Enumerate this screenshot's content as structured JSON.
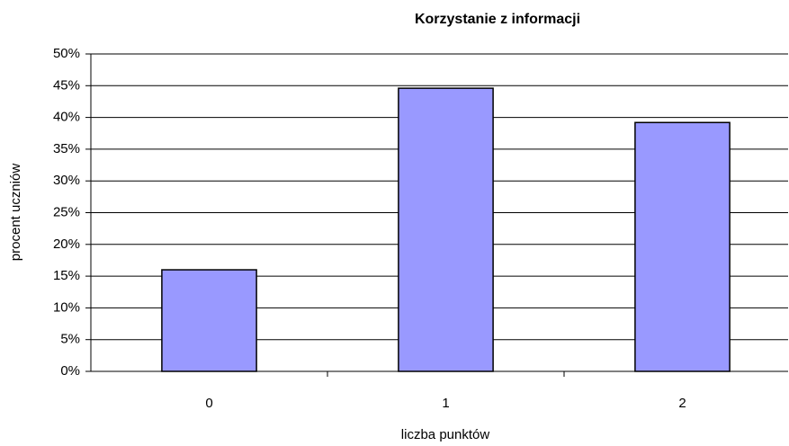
{
  "chart_data": {
    "type": "bar",
    "title": "Korzystanie z informacji",
    "x_label": "liczba punktów",
    "y_label": "procent uczniów",
    "categories": [
      "0",
      "1",
      "2"
    ],
    "values": [
      16,
      44.6,
      39.2
    ],
    "color": "#9999ff",
    "ylim": [
      0,
      50
    ],
    "yticks": [
      {
        "value": 0,
        "label": "0%"
      },
      {
        "value": 5,
        "label": "5%"
      },
      {
        "value": 10,
        "label": "10%"
      },
      {
        "value": 15,
        "label": "15%"
      },
      {
        "value": 20,
        "label": "20%"
      },
      {
        "value": 25,
        "label": "25%"
      },
      {
        "value": 30,
        "label": "30%"
      },
      {
        "value": 35,
        "label": "35%"
      },
      {
        "value": 40,
        "label": "40%"
      },
      {
        "value": 45,
        "label": "45%"
      },
      {
        "value": 50,
        "label": "50%"
      }
    ],
    "grid": true
  }
}
